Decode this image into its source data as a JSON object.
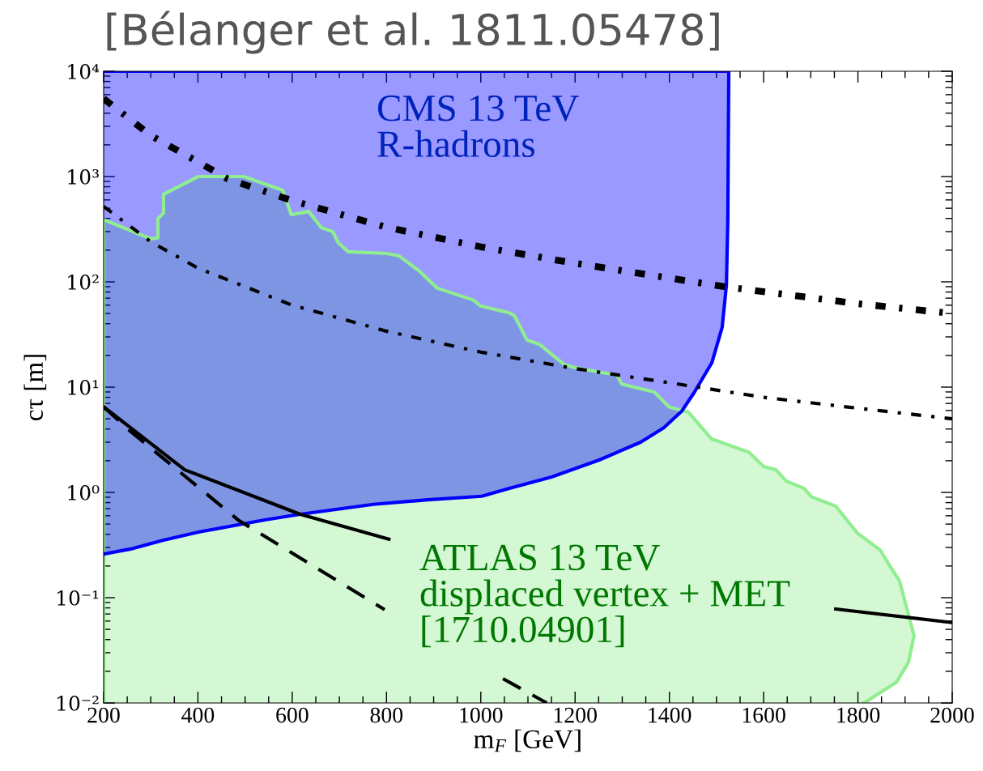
{
  "chart_data": {
    "type": "line",
    "title": "[Bélanger et al. 1811.05478]",
    "xlabel": "m$_{F}$ [GeV]",
    "ylabel": "cτ [m]",
    "log": "y",
    "grid": false,
    "xlim": [
      200,
      2000
    ],
    "xticks": [
      200,
      400,
      600,
      800,
      1000,
      1200,
      1400,
      1600,
      1800,
      2000
    ],
    "ylim": [
      0.01,
      10000
    ],
    "yticks": [
      {
        "value": 0.01,
        "label": "10⁻²"
      },
      {
        "value": 0.1,
        "label": "10⁻¹"
      },
      {
        "value": 1,
        "label": "10⁰"
      },
      {
        "value": 10,
        "label": "10¹"
      },
      {
        "value": 100,
        "label": "10²"
      },
      {
        "value": 1000,
        "label": "10³"
      },
      {
        "value": 10000,
        "label": "10⁴"
      }
    ],
    "annotations": [
      "CMS 13 TeV\nR-hadrons",
      "ATLAS 13 TeV\ndisplaced vertex + MET\n[1710.04901]"
    ],
    "series": [
      {
        "type": "area",
        "color": "#90ee90",
        "x": [
          200,
          200,
          300,
          315,
          315,
          327,
          327,
          401,
          497,
          580,
          598,
          635,
          662,
          686,
          698,
          719,
          801,
          827,
          870,
          908,
          985,
          999,
          1059,
          1071,
          1098,
          1124,
          1177,
          1200,
          1289,
          1299,
          1368,
          1399,
          1425,
          1440,
          1490,
          1504,
          1569,
          1600,
          1626,
          1648,
          1686,
          1701,
          1753,
          1799,
          1847,
          1869,
          1888,
          1919,
          1907,
          1882,
          1813
        ],
        "values": [
          0.01,
          390,
          256,
          262,
          398,
          451,
          678,
          1000,
          1000,
          740,
          435,
          466,
          327,
          300,
          234,
          193,
          186,
          176,
          126,
          87,
          67,
          59,
          51,
          48,
          28,
          25.6,
          16.4,
          15.3,
          13,
          10.7,
          9.0,
          6.5,
          6.0,
          5.8,
          3.2,
          3.06,
          2.4,
          1.76,
          1.64,
          1.28,
          1.09,
          0.91,
          0.74,
          0.41,
          0.284,
          0.196,
          0.145,
          0.0437,
          0.0243,
          0.0158,
          0.01
        ]
      },
      {
        "type": "area",
        "color": "#0000ff",
        "x": [
          200,
          257,
          325,
          401,
          544,
          617,
          772,
          887,
          1002,
          1059,
          1150,
          1251,
          1339,
          1388,
          1426,
          1452,
          1490,
          1512,
          1521,
          1524,
          1526,
          200
        ],
        "values": [
          0.26,
          0.29,
          0.35,
          0.42,
          0.55,
          0.62,
          0.77,
          0.85,
          0.92,
          1.09,
          1.4,
          2.03,
          3.0,
          4.1,
          5.9,
          8.8,
          17,
          37,
          93,
          385,
          10000,
          10000
        ]
      },
      {
        "color": "#000000",
        "line_style": "dashdot",
        "x": [
          200,
          300,
          400,
          463,
          600,
          800,
          1000,
          1200,
          1516,
          1800,
          2000
        ],
        "values": [
          5500,
          2450,
          1380,
          950,
          590,
          330,
          215,
          150,
          90,
          62,
          50
        ]
      },
      {
        "color": "#000000",
        "line_style": "dashdot",
        "x": [
          200,
          300,
          400,
          600,
          800,
          1000,
          1200,
          1400,
          1600,
          1800,
          2000
        ],
        "values": [
          520,
          240,
          135,
          60,
          34,
          21.5,
          15,
          11,
          8,
          6.3,
          5.0
        ]
      },
      {
        "color": "#000000",
        "line_style": "solid",
        "x": [
          200,
          372,
          617,
          805,
          1300,
          1753,
          2000
        ],
        "values": [
          6.5,
          1.64,
          0.62,
          0.36,
          null,
          0.078,
          0.058
        ]
      },
      {
        "color": "#000000",
        "line_style": "dashed",
        "x": [
          200,
          257,
          487,
          796,
          900,
          1047,
          1140
        ],
        "values": [
          6.5,
          3.8,
          0.54,
          0.077,
          null,
          0.017,
          0.01
        ]
      }
    ]
  }
}
